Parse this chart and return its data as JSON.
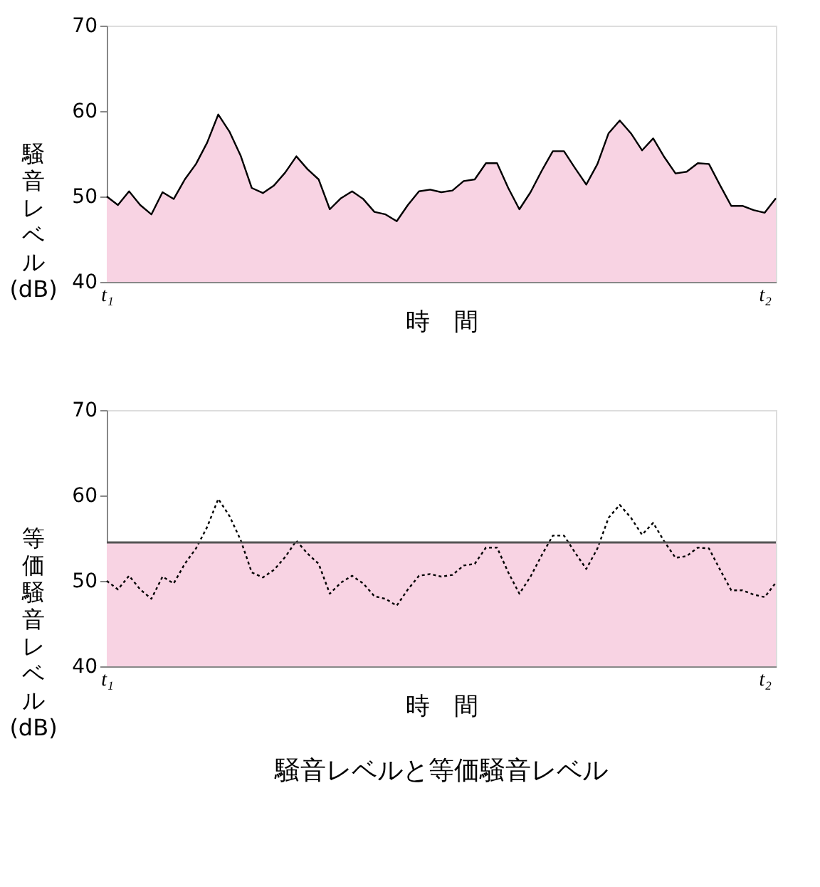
{
  "chart_data": [
    {
      "type": "area",
      "xlabel": "時　間",
      "ylabel": "騒音レベル(dB)",
      "categories": [
        "t₁",
        null,
        null,
        null,
        null,
        null,
        null,
        null,
        null,
        null,
        null,
        null,
        null,
        null,
        null,
        null,
        null,
        null,
        null,
        null,
        null,
        null,
        null,
        null,
        null,
        null,
        null,
        null,
        null,
        null,
        null,
        null,
        null,
        null,
        null,
        null,
        null,
        null,
        null,
        null,
        null,
        null,
        null,
        null,
        null,
        null,
        null,
        null,
        null,
        null,
        null,
        null,
        null,
        null,
        null,
        null,
        null,
        null,
        null,
        "t₂",
        null
      ],
      "series": [
        {
          "color": "#f8d3e3",
          "values": [
            50,
            49.0,
            50.6,
            49.0,
            47.9,
            50.5,
            49.7,
            52.0,
            53.8,
            56.3,
            59.6,
            57.6,
            54.8,
            51.0,
            50.4,
            51.3,
            52.8,
            54.7,
            53.2,
            52.0,
            48.5,
            49.8,
            50.6,
            49.7,
            48.2,
            47.9,
            47.1,
            49.0,
            50.6,
            50.8,
            50.5,
            50.7,
            51.8,
            52.0,
            53.9,
            53.9,
            51.0,
            48.5,
            50.5,
            53.0,
            55.3,
            55.3,
            53.3,
            51.4,
            53.8,
            57.4,
            58.9,
            57.4,
            55.4,
            56.8,
            54.6,
            52.7,
            52.9,
            53.9,
            53.8,
            51.3,
            48.9,
            48.9,
            48.4,
            48.1,
            49.8
          ]
        }
      ],
      "ylim": [
        40,
        70
      ],
      "yticks": [
        40,
        50,
        60,
        70
      ],
      "grid": false,
      "legend": false
    },
    {
      "type": "line",
      "xlabel": "時　間",
      "ylabel": "等価騒音レベル(dB)",
      "categories": [
        "t₁",
        null,
        null,
        null,
        null,
        null,
        null,
        null,
        null,
        null,
        null,
        null,
        null,
        null,
        null,
        null,
        null,
        null,
        null,
        null,
        null,
        null,
        null,
        null,
        null,
        null,
        null,
        null,
        null,
        null,
        null,
        null,
        null,
        null,
        null,
        null,
        null,
        null,
        null,
        null,
        null,
        null,
        null,
        null,
        null,
        null,
        null,
        null,
        null,
        null,
        null,
        null,
        null,
        null,
        null,
        null,
        null,
        null,
        null,
        "t₂",
        null
      ],
      "series": [
        {
          "color": "#000000",
          "line_style": "dotted",
          "values": [
            50,
            49.0,
            50.6,
            49.0,
            47.9,
            50.5,
            49.7,
            52.0,
            53.8,
            56.3,
            59.6,
            57.6,
            54.8,
            51.0,
            50.4,
            51.3,
            52.8,
            54.7,
            53.2,
            52.0,
            48.5,
            49.8,
            50.6,
            49.7,
            48.2,
            47.9,
            47.1,
            49.0,
            50.6,
            50.8,
            50.5,
            50.7,
            51.8,
            52.0,
            53.9,
            53.9,
            51.0,
            48.5,
            50.5,
            53.0,
            55.3,
            55.3,
            53.3,
            51.4,
            53.8,
            57.4,
            58.9,
            57.4,
            55.4,
            56.8,
            54.6,
            52.7,
            52.9,
            53.9,
            53.8,
            51.3,
            48.9,
            48.9,
            48.4,
            48.1,
            49.8
          ]
        }
      ],
      "bands": [
        {
          "axis": "y",
          "from": 40,
          "to": 54.5,
          "color": "#f8d3e3"
        }
      ],
      "ref_lines": [
        {
          "axis": "y",
          "value": 54.5,
          "color": "#555555"
        }
      ],
      "ylim": [
        40,
        70
      ],
      "yticks": [
        40,
        50,
        60,
        70
      ],
      "grid": false,
      "legend": false,
      "annotations": [
        "騒音レベルと等価騒音レベル"
      ]
    }
  ]
}
